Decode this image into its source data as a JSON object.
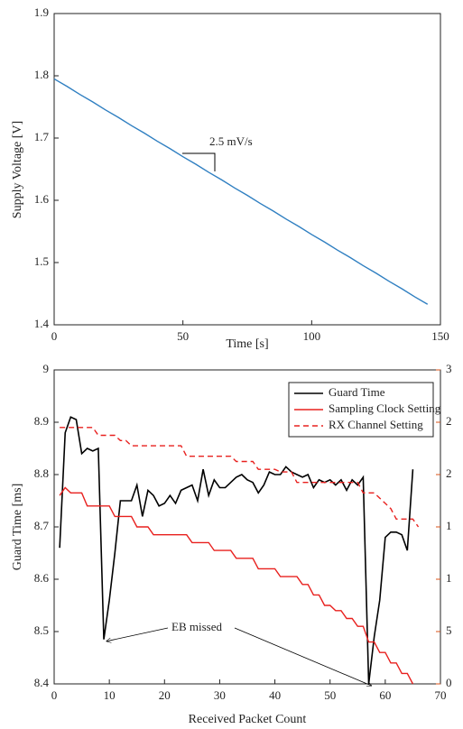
{
  "chart_data": [
    {
      "type": "line",
      "xlabel": "Time [s]",
      "ylabel": "Supply Voltage [V]",
      "xlim": [
        0,
        150
      ],
      "xticks": [
        0,
        50,
        100,
        150
      ],
      "ylim": [
        1.4,
        1.9
      ],
      "yticks": [
        1.4,
        1.5,
        1.6,
        1.7,
        1.8,
        1.9
      ],
      "annotations": [
        {
          "text": "2.5 mV/s"
        }
      ],
      "series": [
        {
          "name": "Supply Voltage",
          "color": "#2f7fc1",
          "line_style": "solid",
          "x": [
            0,
            5,
            10,
            15,
            20,
            25,
            30,
            35,
            40,
            45,
            50,
            55,
            60,
            65,
            70,
            75,
            80,
            85,
            90,
            95,
            100,
            105,
            110,
            115,
            120,
            125,
            130,
            135,
            140,
            145
          ],
          "values": [
            1.795,
            1.783,
            1.77,
            1.758,
            1.745,
            1.733,
            1.72,
            1.708,
            1.695,
            1.683,
            1.67,
            1.658,
            1.645,
            1.633,
            1.62,
            1.608,
            1.595,
            1.583,
            1.57,
            1.558,
            1.545,
            1.533,
            1.52,
            1.508,
            1.495,
            1.483,
            1.47,
            1.458,
            1.445,
            1.433
          ]
        }
      ]
    },
    {
      "type": "line",
      "xlabel": "Received Packet Count",
      "ylabel": "Guard Time [ms]",
      "xlim": [
        0,
        70
      ],
      "xticks": [
        0,
        10,
        20,
        30,
        40,
        50,
        60,
        70
      ],
      "ylim": [
        8.4,
        9
      ],
      "yticks": [
        8.4,
        8.5,
        8.6,
        8.7,
        8.8,
        8.9,
        9
      ],
      "y2lim": [
        0,
        3
      ],
      "y2color": "#d95319",
      "y2ticks": [
        0,
        {
          "value": 0.5,
          "label": "5"
        },
        1,
        {
          "value": 1.5,
          "label": "1"
        },
        2,
        {
          "value": 2.5,
          "label": "2"
        },
        3
      ],
      "legend": "top-right",
      "annotations": [
        {
          "text": "EB missed"
        }
      ],
      "series": [
        {
          "name": "Guard Time",
          "color": "#000000",
          "line_style": "solid",
          "x": [
            1,
            2,
            3,
            4,
            5,
            6,
            7,
            8,
            9,
            10,
            11,
            12,
            13,
            14,
            15,
            16,
            17,
            18,
            19,
            20,
            21,
            22,
            23,
            24,
            25,
            26,
            27,
            28,
            29,
            30,
            31,
            32,
            33,
            34,
            35,
            36,
            37,
            38,
            39,
            40,
            41,
            42,
            43,
            44,
            45,
            46,
            47,
            48,
            49,
            50,
            51,
            52,
            53,
            54,
            55,
            56,
            57,
            58,
            59,
            60,
            61,
            62,
            63,
            64,
            65
          ],
          "values": [
            8.66,
            8.88,
            8.91,
            8.905,
            8.84,
            8.85,
            8.845,
            8.85,
            8.485,
            8.56,
            8.65,
            8.75,
            8.75,
            8.75,
            8.78,
            8.72,
            8.77,
            8.76,
            8.74,
            8.745,
            8.76,
            8.745,
            8.77,
            8.775,
            8.78,
            8.75,
            8.81,
            8.76,
            8.79,
            8.775,
            8.775,
            8.785,
            8.795,
            8.8,
            8.79,
            8.785,
            8.765,
            8.78,
            8.805,
            8.8,
            8.8,
            8.815,
            8.805,
            8.8,
            8.795,
            8.8,
            8.775,
            8.79,
            8.785,
            8.79,
            8.78,
            8.79,
            8.77,
            8.79,
            8.78,
            8.795,
            8.4,
            8.49,
            8.56,
            8.68,
            8.69,
            8.69,
            8.685,
            8.655,
            8.81
          ]
        },
        {
          "name": "Sampling Clock Setting",
          "color": "#e8201e",
          "line_style": "solid",
          "axis": "y2",
          "x": [
            1,
            2,
            3,
            5,
            6,
            10,
            11,
            14,
            15,
            17,
            18,
            24,
            25,
            28,
            29,
            32,
            33,
            36,
            37,
            40,
            41,
            44,
            45,
            46,
            47,
            48,
            49,
            50,
            51,
            52,
            53,
            54,
            55,
            56,
            57,
            58,
            59,
            60,
            61,
            62,
            63,
            64,
            65
          ],
          "values": [
            1.8,
            1.875,
            1.825,
            1.825,
            1.7,
            1.7,
            1.6,
            1.6,
            1.5,
            1.5,
            1.425,
            1.425,
            1.35,
            1.35,
            1.275,
            1.275,
            1.2,
            1.2,
            1.1,
            1.1,
            1.025,
            1.025,
            0.95,
            0.95,
            0.85,
            0.85,
            0.75,
            0.75,
            0.7,
            0.7,
            0.625,
            0.625,
            0.55,
            0.55,
            0.4,
            0.4,
            0.3,
            0.3,
            0.2,
            0.2,
            0.1,
            0.1,
            0
          ]
        },
        {
          "name": "RX Channel Setting",
          "color": "#e8201e",
          "line_style": "dashed",
          "axis": "y2",
          "x": [
            1,
            7,
            8,
            11,
            12,
            13,
            14,
            23,
            24,
            32,
            33,
            36,
            37,
            40,
            41,
            43,
            44,
            55,
            56,
            58,
            59,
            60,
            61,
            62,
            65,
            66
          ],
          "values": [
            2.45,
            2.45,
            2.375,
            2.375,
            2.325,
            2.325,
            2.275,
            2.275,
            2.175,
            2.175,
            2.125,
            2.125,
            2.05,
            2.05,
            2.025,
            2.025,
            1.925,
            1.925,
            1.825,
            1.825,
            1.775,
            1.725,
            1.675,
            1.575,
            1.575,
            1.5
          ]
        }
      ]
    }
  ]
}
